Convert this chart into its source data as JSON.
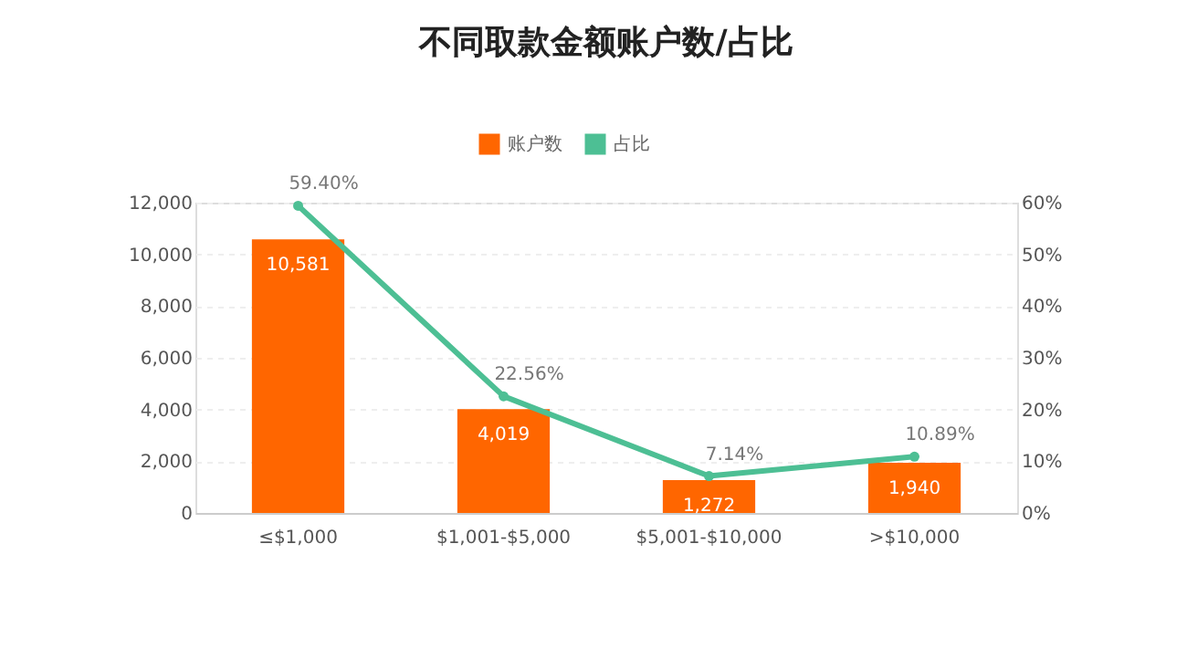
{
  "chart_data": {
    "type": "bar",
    "title": "不同取款金额账户数/占比",
    "categories": [
      "≤$1,000",
      "$1,001-$5,000",
      "$5,001-$10,000",
      ">$10,000"
    ],
    "series": [
      {
        "name": "账户数",
        "color": "#ff6600",
        "values": [
          10581,
          4019,
          1272,
          1940
        ],
        "value_labels": [
          "10,581",
          "4,019",
          "1,272",
          "1,940"
        ]
      },
      {
        "name": "占比",
        "type": "line",
        "axis": "y2",
        "color": "#4dbf94",
        "marker": "circle",
        "values": [
          59.4,
          22.56,
          7.14,
          10.89
        ],
        "value_labels": [
          "59.40%",
          "22.56%",
          "7.14%",
          "10.89%"
        ]
      }
    ],
    "ylim": [
      0,
      12000
    ],
    "yticks": [
      {
        "value": 0,
        "label": "0"
      },
      {
        "value": 2000,
        "label": "2,000"
      },
      {
        "value": 4000,
        "label": "4,000"
      },
      {
        "value": 6000,
        "label": "6,000"
      },
      {
        "value": 8000,
        "label": "8,000"
      },
      {
        "value": 10000,
        "label": "10,000"
      },
      {
        "value": 12000,
        "label": "12,000"
      }
    ],
    "y2lim": [
      0,
      60
    ],
    "y2ticks": [
      {
        "value": 0,
        "label": "0%"
      },
      {
        "value": 10,
        "label": "10%"
      },
      {
        "value": 20,
        "label": "20%"
      },
      {
        "value": 30,
        "label": "30%"
      },
      {
        "value": 40,
        "label": "40%"
      },
      {
        "value": 50,
        "label": "50%"
      },
      {
        "value": 60,
        "label": "60%"
      }
    ],
    "grid": "y",
    "legend": "top"
  }
}
